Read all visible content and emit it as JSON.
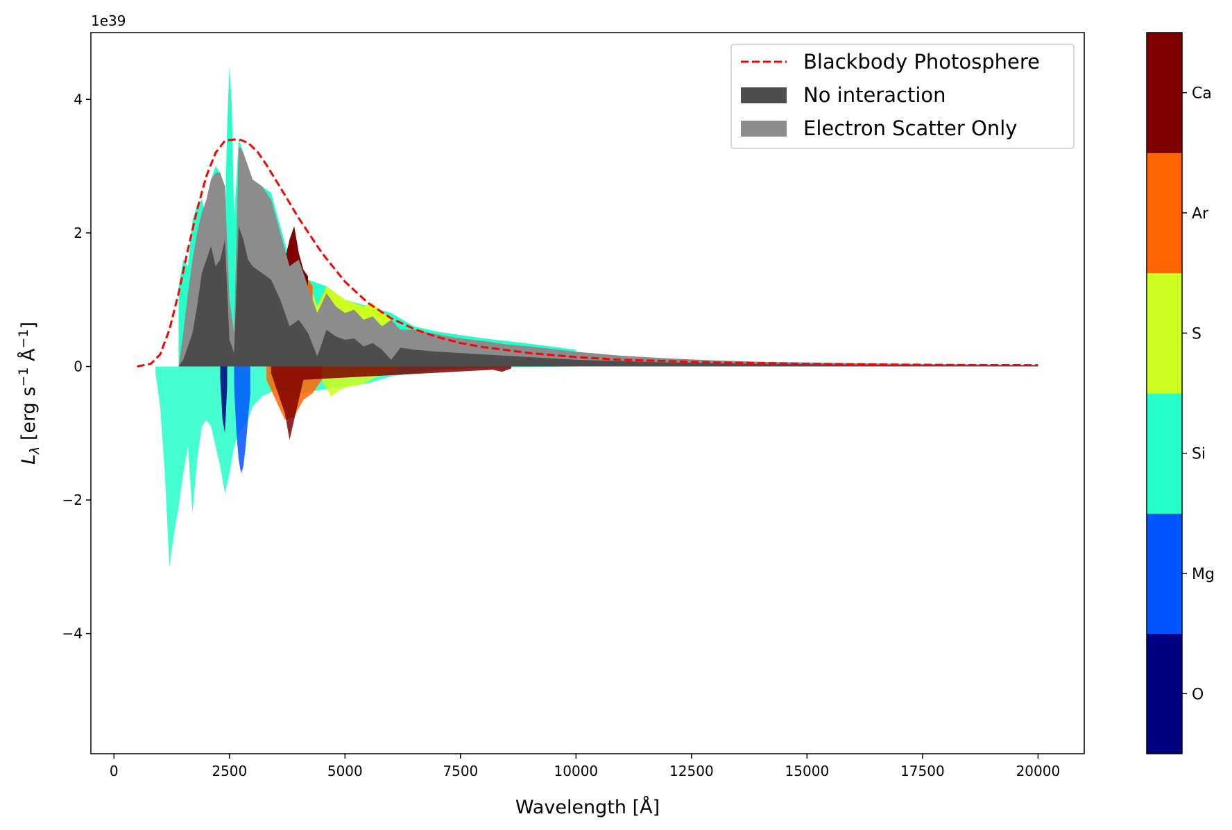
{
  "chart_data": {
    "type": "area",
    "xlabel": "Wavelength [Å]",
    "ylabel": "L_λ [erg s⁻¹ Å⁻¹]",
    "ylabel_main": "L",
    "ylabel_sub": "λ",
    "ylabel_rest": " [erg s",
    "ylabel_sup1": "−1",
    "ylabel_mid": " Å",
    "ylabel_sup2": "−1",
    "ylabel_end": "]",
    "y_offset_text": "1e39",
    "xlim": [
      -500,
      21000
    ],
    "ylim": [
      -5.8,
      5.0
    ],
    "y_scale": 1e+39,
    "x_ticks": [
      0,
      2500,
      5000,
      7500,
      10000,
      12500,
      15000,
      17500,
      20000
    ],
    "x_tick_labels": [
      "0",
      "2500",
      "5000",
      "7500",
      "10000",
      "12500",
      "15000",
      "17500",
      "20000"
    ],
    "y_ticks": [
      -4,
      -2,
      0,
      2,
      4
    ],
    "y_tick_labels": [
      "−4",
      "−2",
      "0",
      "2",
      "4"
    ],
    "legend": {
      "position": "top-right",
      "entries": [
        {
          "label": "Blackbody Photosphere",
          "style": "dashed-line",
          "color": "#ff0000"
        },
        {
          "label": "No interaction",
          "style": "patch",
          "color": "#4d4d4d"
        },
        {
          "label": "Electron Scatter Only",
          "style": "patch",
          "color": "#8c8c8c"
        }
      ]
    },
    "blackbody": {
      "name": "Blackbody Photosphere",
      "color": "#ff0000",
      "x": [
        500,
        800,
        1000,
        1200,
        1400,
        1600,
        1800,
        2000,
        2200,
        2400,
        2600,
        2750,
        2900,
        3100,
        3300,
        3600,
        4000,
        4500,
        5000,
        5500,
        6000,
        6500,
        7000,
        7500,
        8000,
        9000,
        10000,
        11000,
        12000,
        13000,
        14000,
        15000,
        16000,
        17000,
        18000,
        19000,
        20000
      ],
      "y": [
        0.0,
        0.04,
        0.18,
        0.55,
        1.1,
        1.75,
        2.35,
        2.85,
        3.2,
        3.38,
        3.4,
        3.39,
        3.35,
        3.22,
        3.02,
        2.68,
        2.22,
        1.7,
        1.27,
        0.95,
        0.72,
        0.56,
        0.44,
        0.35,
        0.29,
        0.2,
        0.14,
        0.1,
        0.08,
        0.06,
        0.05,
        0.04,
        0.033,
        0.028,
        0.024,
        0.021,
        0.02
      ]
    },
    "electron_scatter": {
      "name": "Electron Scatter Only",
      "color": "#8c8c8c",
      "x": [
        1400,
        1500,
        1600,
        1700,
        1800,
        1900,
        2000,
        2100,
        2200,
        2300,
        2400,
        2500,
        2600,
        2700,
        2800,
        2900,
        3000,
        3200,
        3400,
        3600,
        3800,
        4000,
        4200,
        4400,
        4600,
        4800,
        5000,
        5200,
        5400,
        5600,
        5800,
        6000,
        6200,
        6500,
        7000,
        7500,
        8000,
        8500,
        9000,
        9500,
        10000,
        11000,
        12000,
        13000,
        14000,
        15000,
        16000,
        17000,
        18000,
        19000,
        20000
      ],
      "y": [
        0.0,
        0.5,
        1.1,
        1.6,
        2.0,
        2.3,
        2.5,
        2.8,
        2.9,
        2.9,
        2.7,
        1.0,
        0.5,
        3.3,
        3.2,
        3.0,
        2.8,
        2.7,
        2.5,
        2.0,
        1.5,
        1.6,
        1.2,
        0.8,
        1.1,
        0.9,
        0.8,
        0.85,
        0.7,
        0.75,
        0.6,
        0.7,
        0.55,
        0.55,
        0.48,
        0.42,
        0.38,
        0.33,
        0.3,
        0.26,
        0.22,
        0.16,
        0.12,
        0.09,
        0.07,
        0.06,
        0.05,
        0.04,
        0.035,
        0.03,
        0.025
      ]
    },
    "no_interaction": {
      "name": "No interaction",
      "color": "#4d4d4d",
      "x": [
        1400,
        1500,
        1600,
        1700,
        1800,
        1900,
        2000,
        2100,
        2200,
        2300,
        2400,
        2500,
        2600,
        2700,
        2800,
        2900,
        3000,
        3200,
        3400,
        3600,
        3800,
        4000,
        4200,
        4400,
        4600,
        4800,
        5000,
        5200,
        5400,
        5600,
        5800,
        6000,
        6200,
        6500,
        7000,
        7500,
        8000,
        8500,
        9000,
        9500,
        10000,
        11000,
        12000,
        13000,
        14000,
        15000,
        16000,
        17000,
        18000,
        19000,
        20000
      ],
      "y": [
        0.0,
        0.1,
        0.3,
        0.5,
        0.9,
        1.4,
        1.6,
        1.8,
        1.5,
        1.6,
        1.9,
        0.4,
        0.2,
        2.1,
        1.9,
        1.6,
        1.5,
        1.4,
        1.3,
        1.0,
        0.6,
        0.7,
        0.5,
        0.15,
        0.55,
        0.45,
        0.4,
        0.42,
        0.3,
        0.35,
        0.25,
        0.1,
        0.28,
        0.25,
        0.22,
        0.2,
        0.18,
        0.16,
        0.14,
        0.12,
        0.1,
        0.08,
        0.06,
        0.05,
        0.04,
        0.035,
        0.03,
        0.025,
        0.02,
        0.018,
        0.015
      ]
    },
    "element_contributions": [
      {
        "element": "Si",
        "color": "#26ffc9",
        "x": [
          1400,
          1500,
          1600,
          1700,
          1800,
          1900,
          2000,
          2100,
          2200,
          2300,
          2400,
          2450,
          2500,
          2550,
          2600,
          2700,
          2800,
          2900,
          3000,
          3400,
          3800,
          4200,
          4600,
          5000,
          5500,
          6000,
          6500,
          7000,
          8000,
          9000,
          10000
        ],
        "y": [
          1.2,
          1.6,
          1.5,
          2.2,
          2.4,
          2.5,
          2.2,
          2.8,
          3.0,
          2.9,
          2.2,
          3.6,
          4.5,
          3.9,
          2.2,
          3.4,
          3.2,
          3.0,
          2.8,
          2.6,
          1.6,
          1.3,
          1.2,
          1.0,
          0.9,
          0.8,
          0.6,
          0.52,
          0.42,
          0.34,
          0.25
        ]
      },
      {
        "element": "Mg",
        "color": "#0055ff",
        "x": [
          2600,
          2650,
          2700,
          2750,
          2800,
          2850,
          2900
        ],
        "y": [
          0.3,
          1.5,
          2.7,
          3.3,
          2.9,
          2.0,
          0.6
        ]
      },
      {
        "element": "S",
        "color": "#ccff1f",
        "x": [
          4200,
          4400,
          4600,
          4800,
          5000,
          5200,
          5400,
          5600,
          5800,
          6000
        ],
        "y": [
          1.3,
          0.9,
          1.2,
          1.1,
          1.0,
          0.95,
          0.9,
          0.95,
          0.8,
          0.75
        ]
      },
      {
        "element": "Ar",
        "color": "#ff6600",
        "x": [
          3900,
          4000,
          4100,
          4200,
          4300
        ],
        "y": [
          1.5,
          1.65,
          1.4,
          1.3,
          1.2
        ]
      },
      {
        "element": "Ca",
        "color": "#800000",
        "x": [
          3700,
          3800,
          3900,
          4000,
          4100,
          4200
        ],
        "y": [
          1.6,
          1.9,
          2.1,
          1.7,
          1.45,
          1.35
        ]
      }
    ],
    "element_absorption": [
      {
        "element": "Si",
        "color": "#26ffc9",
        "x": [
          900,
          1000,
          1100,
          1200,
          1300,
          1400,
          1500,
          1600,
          1700,
          1800,
          1900,
          2000,
          2100,
          2200,
          2300,
          2400,
          2500,
          2600,
          2700,
          2800,
          2900,
          3000,
          3200,
          3500,
          4000,
          4500,
          5000,
          5500,
          6000,
          6500,
          7000,
          8000,
          9000,
          10000
        ],
        "y": [
          -0.1,
          -0.6,
          -1.6,
          -3.0,
          -2.5,
          -2.1,
          -1.6,
          -1.2,
          -2.2,
          -1.4,
          -0.9,
          -0.8,
          -0.9,
          -1.2,
          -1.5,
          -1.9,
          -1.6,
          -1.2,
          -1.0,
          -0.9,
          -0.8,
          -0.6,
          -0.45,
          -0.35,
          -0.4,
          -0.35,
          -0.3,
          -0.25,
          -0.15,
          -0.1,
          -0.05,
          -0.02,
          -0.01,
          0.0
        ]
      },
      {
        "element": "Mg",
        "color": "#0055ff",
        "x": [
          2600,
          2650,
          2700,
          2750,
          2800,
          2850,
          2900,
          2950
        ],
        "y": [
          -0.3,
          -1.0,
          -1.4,
          -1.6,
          -1.5,
          -1.2,
          -0.8,
          -0.4
        ]
      },
      {
        "element": "O",
        "color": "#000080",
        "x": [
          2300,
          2350,
          2400,
          2450
        ],
        "y": [
          -0.2,
          -0.8,
          -1.0,
          -0.3
        ]
      },
      {
        "element": "S",
        "color": "#ccff1f",
        "x": [
          4500,
          4700,
          4900,
          5100,
          5300,
          5500,
          5700,
          5900,
          6100
        ],
        "y": [
          -0.2,
          -0.45,
          -0.35,
          -0.3,
          -0.28,
          -0.22,
          -0.15,
          -0.1,
          -0.05
        ]
      },
      {
        "element": "Ar",
        "color": "#ff6600",
        "x": [
          3300,
          3500,
          3700,
          3900,
          4100,
          4300,
          4500
        ],
        "y": [
          -0.2,
          -0.5,
          -0.8,
          -0.75,
          -0.5,
          -0.4,
          -0.2
        ]
      },
      {
        "element": "Ca",
        "color": "#800000",
        "x": [
          3400,
          3550,
          3700,
          3800,
          3900,
          4000,
          4100,
          8200,
          8400,
          8600
        ],
        "y": [
          -0.1,
          -0.4,
          -0.7,
          -1.1,
          -0.8,
          -0.5,
          -0.2,
          -0.05,
          -0.08,
          -0.03
        ]
      }
    ],
    "colorbar": {
      "entries": [
        {
          "label": "O",
          "color": "#000080"
        },
        {
          "label": "Mg",
          "color": "#0055ff"
        },
        {
          "label": "Si",
          "color": "#26ffc9"
        },
        {
          "label": "S",
          "color": "#ccff1f"
        },
        {
          "label": "Ar",
          "color": "#ff6600"
        },
        {
          "label": "Ca",
          "color": "#800000"
        }
      ]
    }
  }
}
